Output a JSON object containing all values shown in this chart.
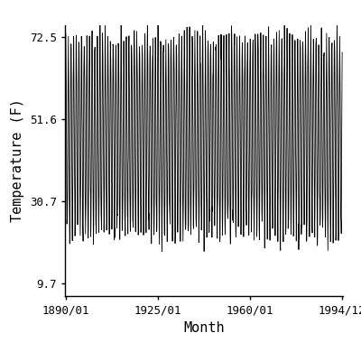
{
  "title": "",
  "xlabel": "Month",
  "ylabel": "Temperature (F)",
  "start_year": 1890,
  "start_month": 1,
  "end_year": 1994,
  "end_month": 12,
  "yticks": [
    9.7,
    30.7,
    51.6,
    72.5
  ],
  "xtick_labels": [
    "1890/01",
    "1925/01",
    "1960/01",
    "1994/12"
  ],
  "xtick_years": [
    1890,
    1925,
    1960,
    1994
  ],
  "xtick_months": [
    1,
    1,
    1,
    12
  ],
  "ylim_low": 6.5,
  "ylim_high": 75.5,
  "mean_temp": 47.1,
  "amplitude": 25.0,
  "noise_amplitude": 2.5,
  "line_color": "#000000",
  "line_width": 0.6,
  "bg_color": "#ffffff",
  "font_family": "monospace",
  "font_size_ticks": 9,
  "font_size_labels": 11
}
